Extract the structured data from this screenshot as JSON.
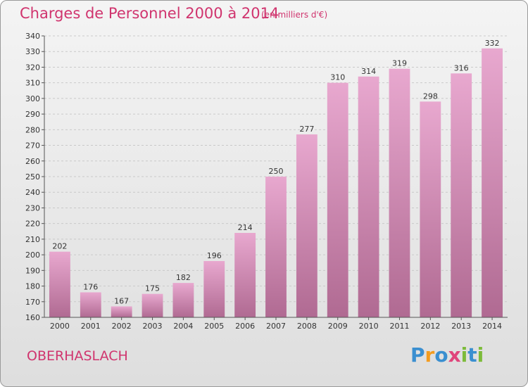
{
  "title": "Charges de Personnel 2000 à 2014",
  "unit_note": "(en milliers d'€)",
  "commune": "OBERHASLACH",
  "logo": {
    "text": "Proxiti",
    "letters": [
      {
        "ch": "P",
        "color": "#3a8fd0"
      },
      {
        "ch": "r",
        "color": "#f39c1f"
      },
      {
        "ch": "o",
        "color": "#3a8fd0"
      },
      {
        "ch": "x",
        "color": "#e0457b"
      },
      {
        "ch": "i",
        "color": "#7dbb3a"
      },
      {
        "ch": "t",
        "color": "#3a8fd0"
      },
      {
        "ch": "i",
        "color": "#7dbb3a"
      }
    ]
  },
  "colors": {
    "accent": "#d0346e",
    "bar_top": "#e8a8cf",
    "bar_bottom": "#b06a92",
    "grid": "#c9c9c9"
  },
  "chart_data": {
    "type": "bar",
    "title": "Charges de Personnel 2000 à 2014",
    "categories": [
      "2000",
      "2001",
      "2002",
      "2003",
      "2004",
      "2005",
      "2006",
      "2007",
      "2008",
      "2009",
      "2010",
      "2011",
      "2012",
      "2013",
      "2014"
    ],
    "values": [
      202,
      176,
      167,
      175,
      182,
      196,
      214,
      250,
      277,
      310,
      314,
      319,
      298,
      316,
      332
    ],
    "ylim": [
      160,
      340
    ],
    "yticks": [
      160,
      170,
      180,
      190,
      200,
      210,
      220,
      230,
      240,
      250,
      260,
      270,
      280,
      290,
      300,
      310,
      320,
      330,
      340
    ],
    "grid": true,
    "xlabel": "",
    "ylabel": ""
  }
}
